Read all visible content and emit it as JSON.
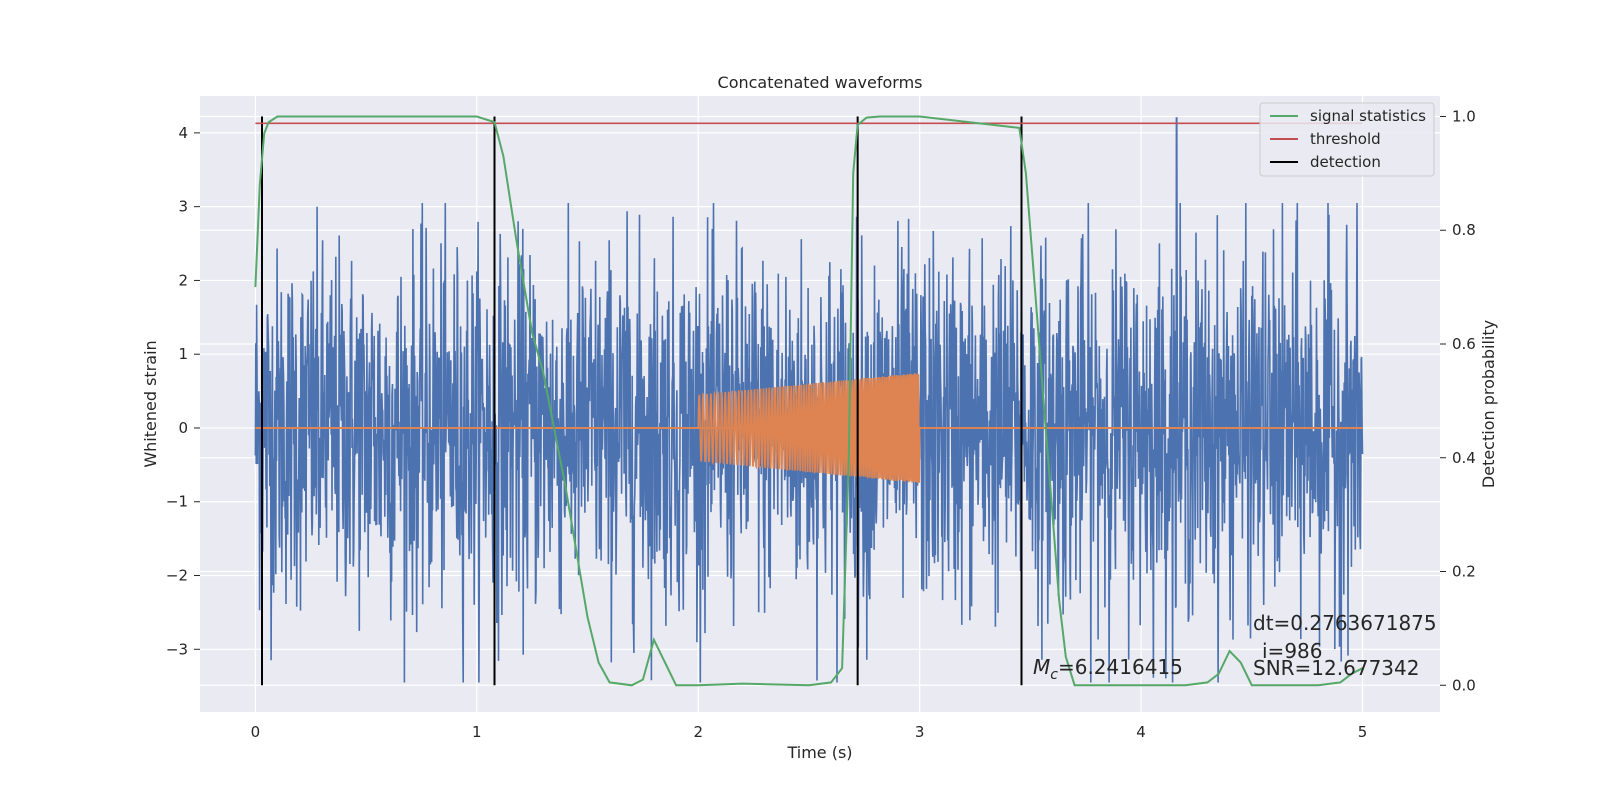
{
  "chart_data": {
    "type": "line",
    "title": "Concatenated waveforms",
    "xlabel": "Time (s)",
    "ylabel": "Whitened strain",
    "y2label": "Detection probability",
    "xlim": [
      -0.25,
      5.35
    ],
    "ylim": [
      -3.85,
      4.5
    ],
    "y2lim": [
      -0.047,
      1.036
    ],
    "xticks": [
      "0",
      "1",
      "2",
      "3",
      "4",
      "5"
    ],
    "yticks": [
      "4",
      "3",
      "2",
      "1",
      "0",
      "−1",
      "−2",
      "−3"
    ],
    "y2ticks": [
      "1.0",
      "0.8",
      "0.6",
      "0.4",
      "0.2",
      "0.0"
    ],
    "grid": true,
    "legend": {
      "position": "top-right",
      "entries": [
        "signal statistics",
        "threshold",
        "detection"
      ]
    },
    "colors": {
      "strain": "#4c72b0",
      "template": "#dd8452",
      "statistics": "#55a868",
      "threshold": "#c44e52",
      "detection": "#000000",
      "background": "#eaeaf2"
    },
    "series": [
      {
        "name": "signal statistics",
        "axis": "right",
        "x": [
          0.0,
          0.02,
          0.04,
          0.06,
          0.1,
          0.5,
          1.0,
          1.08,
          1.12,
          1.18,
          1.25,
          1.3,
          1.4,
          1.5,
          1.55,
          1.6,
          1.7,
          1.75,
          1.8,
          1.85,
          1.9,
          1.95,
          2.0,
          2.2,
          2.5,
          2.6,
          2.65,
          2.68,
          2.7,
          2.72,
          2.76,
          2.82,
          3.0,
          3.45,
          3.48,
          3.52,
          3.56,
          3.6,
          3.63,
          3.66,
          3.7,
          3.8,
          4.2,
          4.3,
          4.35,
          4.4,
          4.45,
          4.5,
          4.6,
          4.8,
          4.9,
          4.95,
          5.0
        ],
        "values": [
          0.7,
          0.88,
          0.97,
          0.99,
          1.0,
          1.0,
          1.0,
          0.99,
          0.93,
          0.78,
          0.62,
          0.55,
          0.35,
          0.12,
          0.04,
          0.005,
          0.0,
          0.01,
          0.08,
          0.04,
          0.0,
          0.0,
          0.0,
          0.003,
          0.0,
          0.005,
          0.03,
          0.4,
          0.9,
          0.985,
          0.998,
          1.0,
          1.0,
          0.98,
          0.9,
          0.7,
          0.5,
          0.3,
          0.15,
          0.05,
          0.0,
          0.0,
          0.0,
          0.005,
          0.02,
          0.06,
          0.04,
          0.0,
          0.0,
          0.0,
          0.005,
          0.02,
          0.03
        ]
      },
      {
        "name": "threshold",
        "axis": "right",
        "x": [
          0.0,
          5.0
        ],
        "values": [
          0.988,
          0.988
        ]
      },
      {
        "name": "detection",
        "axis": "right",
        "type": "vlines",
        "x": [
          0.03,
          1.08,
          2.72,
          3.46
        ],
        "range": [
          0.0,
          1.0
        ]
      }
    ],
    "strain_noise": {
      "x_range": [
        0.0,
        5.0
      ],
      "typical_amplitude": 1.2,
      "max": 4.2,
      "max_at": 4.16,
      "min": -3.45
    },
    "template": {
      "x_range": [
        2.0,
        3.0
      ],
      "amplitude_start": 0.45,
      "amplitude_end": 0.75
    },
    "annotations": [
      "dt=0.2763671875",
      "i=986",
      "SNR=12.677342",
      "=6.2416415"
    ],
    "annotation_mc_symbol": "M",
    "annotation_mc_sub": "c"
  }
}
